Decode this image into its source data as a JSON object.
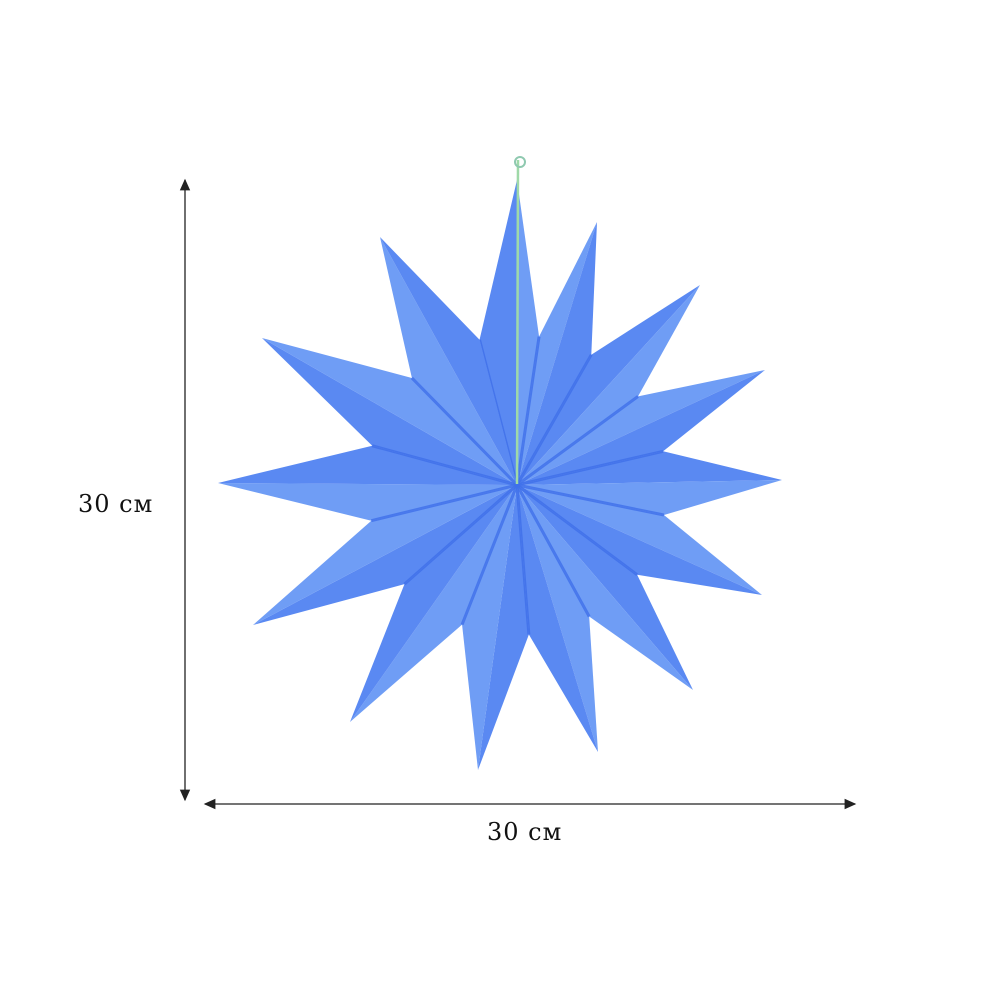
{
  "product": {
    "name": "paper-star-ornament",
    "color": "#5b8ef0",
    "points": 14
  },
  "dimensions": {
    "height_label": "30 см",
    "width_label": "30 см"
  },
  "colors": {
    "star_light": "#6f9df5",
    "star_dark": "#3f70ea",
    "string": "#9fd9a8",
    "arrow": "#222222"
  }
}
